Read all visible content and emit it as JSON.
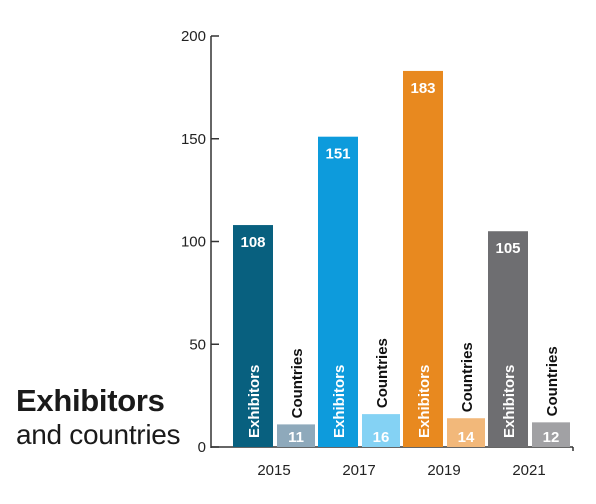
{
  "title": {
    "main": "Exhibitors",
    "sub": "and countries"
  },
  "chart_data": {
    "type": "bar",
    "categories": [
      "2015",
      "2017",
      "2019",
      "2021"
    ],
    "series": [
      {
        "name": "Exhibitors",
        "values": [
          108,
          151,
          183,
          105
        ]
      },
      {
        "name": "Countries",
        "values": [
          11,
          16,
          14,
          12
        ]
      }
    ],
    "colors": {
      "Exhibitors": [
        "#08607f",
        "#0d9bdc",
        "#e8891f",
        "#6e6e71"
      ],
      "Countries": [
        "#8ea9bb",
        "#84d2f4",
        "#f2b87a",
        "#a1a1a4"
      ]
    },
    "y_ticks": [
      "0",
      "50",
      "100",
      "150",
      "200"
    ],
    "ylim": [
      0,
      200
    ],
    "grid": false,
    "legend": "none"
  }
}
